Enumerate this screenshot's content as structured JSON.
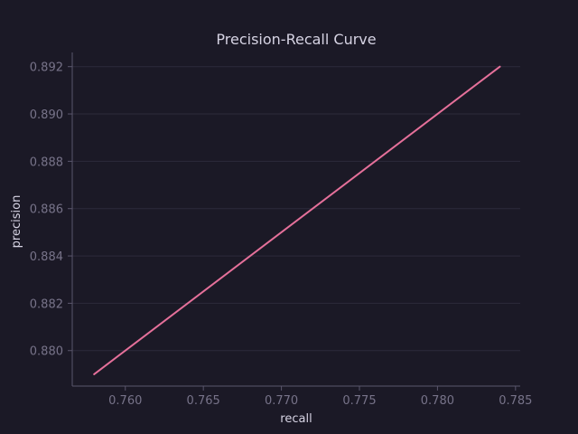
{
  "colors": {
    "background": "#1b1926",
    "series_line": "#e5709a",
    "grid": "#2c2a3b",
    "spine": "#5a566c",
    "tick_text": "#777389",
    "label_text": "#d6d3e3"
  },
  "chart_data": {
    "type": "line",
    "title": "Precision-Recall Curve",
    "xlabel": "recall",
    "ylabel": "precision",
    "xlim": [
      0.7566,
      0.7853
    ],
    "ylim": [
      0.8785,
      0.8926
    ],
    "xticks": [
      0.76,
      0.765,
      0.77,
      0.775,
      0.78,
      0.785
    ],
    "xtick_labels": [
      "0.760",
      "0.765",
      "0.770",
      "0.775",
      "0.780",
      "0.785"
    ],
    "yticks": [
      0.88,
      0.882,
      0.884,
      0.886,
      0.888,
      0.89,
      0.892
    ],
    "ytick_labels": [
      "0.880",
      "0.882",
      "0.884",
      "0.886",
      "0.888",
      "0.890",
      "0.892"
    ],
    "grid": "horizontal",
    "legend": false,
    "series": [
      {
        "x": [
          0.758,
          0.784
        ],
        "y": [
          0.879,
          0.892
        ]
      }
    ]
  }
}
